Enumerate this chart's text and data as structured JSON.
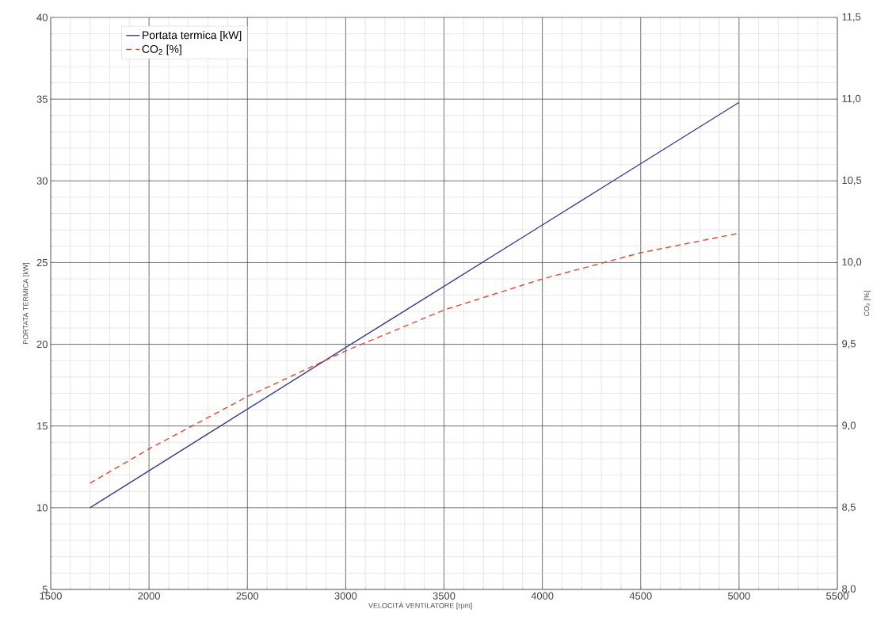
{
  "chart_data": {
    "type": "line",
    "xlabel": "VELOCITÀ VENTILATORE [rpm]",
    "ylabel": "PORTATA TERMICA [kW]",
    "y2label": "CO$_{2}$ [%]",
    "xlim": [
      1500,
      5500
    ],
    "xticks": [
      1500,
      2000,
      2500,
      3000,
      3500,
      4000,
      4500,
      5000,
      5500
    ],
    "ylim": [
      5,
      40
    ],
    "yticks": [
      5,
      10,
      15,
      20,
      25,
      30,
      35,
      40
    ],
    "y2lim": [
      8.0,
      11.5
    ],
    "y2ticks": [
      {
        "value": 8.0,
        "label": "8,0"
      },
      {
        "value": 8.5,
        "label": "8,5"
      },
      {
        "value": 9.0,
        "label": "9,0"
      },
      {
        "value": 9.5,
        "label": "9,5"
      },
      {
        "value": 10.0,
        "label": "10,0"
      },
      {
        "value": 10.5,
        "label": "10,5"
      },
      {
        "value": 11.0,
        "label": "11,0"
      },
      {
        "value": 11.5,
        "label": "11,5"
      }
    ],
    "grid": true,
    "legend": "top left",
    "series": [
      {
        "name": "Portata termica [kW]",
        "color": "#3c3a8e",
        "line_style": "solid",
        "x": [
          1700,
          3000,
          4000,
          5000
        ],
        "values": [
          10.0,
          19.8,
          27.3,
          34.8
        ]
      },
      {
        "name": "CO$_{2}$ [%]",
        "color": "#e2452b",
        "line_style": "dashed",
        "axis": "y2",
        "x": [
          1700,
          2000,
          2500,
          3000,
          3500,
          4000,
          4500,
          5000
        ],
        "values": [
          8.65,
          8.86,
          9.18,
          9.46,
          9.71,
          9.9,
          10.06,
          10.18
        ]
      }
    ]
  }
}
